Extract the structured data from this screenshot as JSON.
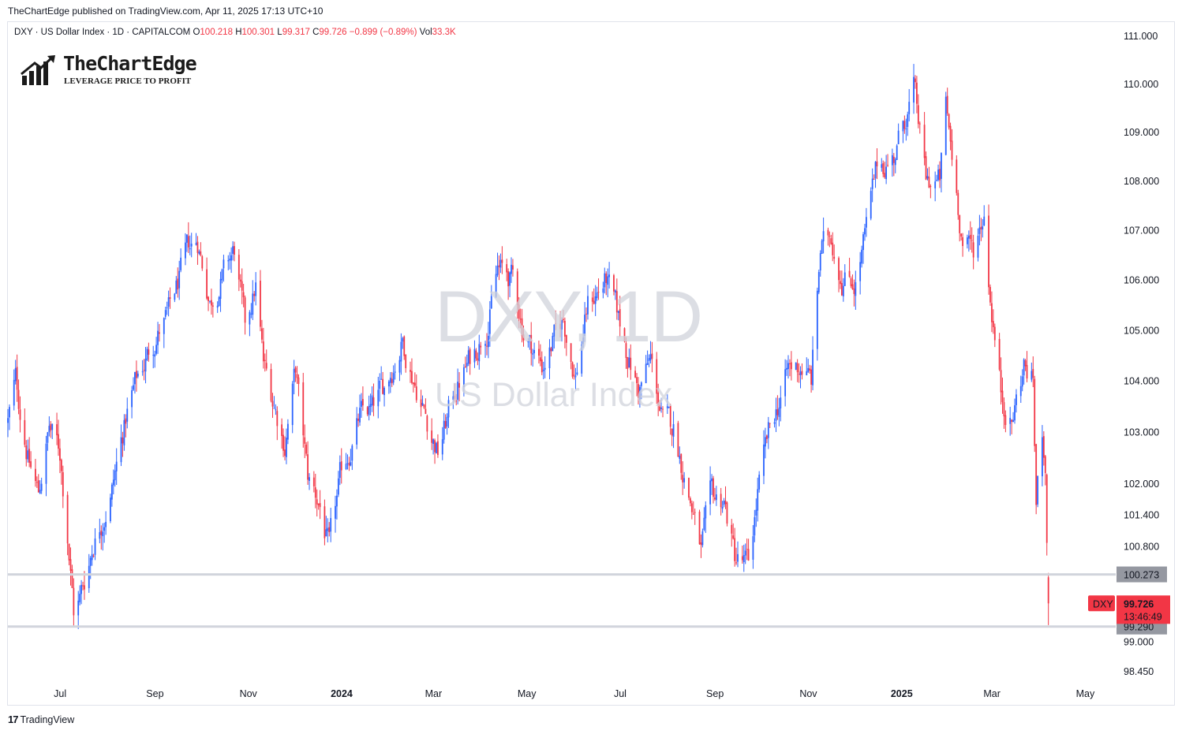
{
  "caption": "TheChartEdge published on TradingView.com, Apr 11, 2025 17:13 UTC+10",
  "legend": {
    "symbol_desc": "DXY · US Dollar Index · 1D · CAPITALCOM",
    "o_key": "O",
    "o_val": "100.218",
    "h_key": "H",
    "h_val": "100.301",
    "l_key": "L",
    "l_val": "99.317",
    "c_key": "C",
    "c_val": "99.726",
    "change": "−0.899 (−0.89%)",
    "vol_key": "Vol",
    "vol_val": "33.3K"
  },
  "logo": {
    "title": "TheChartEdge",
    "tagline": "LEVERAGE PRICE TO PROFIT",
    "icon": "bar-chart-arrow-icon"
  },
  "watermark": {
    "main": "DXY, 1D",
    "sub": "US Dollar Index"
  },
  "footer": {
    "brand": "TradingView",
    "icon": "tradingview-logo-icon"
  },
  "colors": {
    "up": "#2962ff",
    "down": "#f23645",
    "level_line": "#d1d4dc",
    "label_bg": "#9598a1",
    "price_tag": "#f23645"
  },
  "chart_data": {
    "type": "candlestick",
    "symbol": "DXY",
    "timeframe": "1D",
    "y_scale": "log",
    "y_ticks": [
      "111.000",
      "110.000",
      "109.000",
      "108.000",
      "107.000",
      "106.000",
      "105.000",
      "104.000",
      "103.000",
      "102.000",
      "101.400",
      "100.800",
      "99.000",
      "98.450"
    ],
    "x_ticks": [
      {
        "label": "Jul",
        "year": false
      },
      {
        "label": "Sep",
        "year": false
      },
      {
        "label": "Nov",
        "year": false
      },
      {
        "label": "2024",
        "year": true
      },
      {
        "label": "Mar",
        "year": false
      },
      {
        "label": "May",
        "year": false
      },
      {
        "label": "Jul",
        "year": false
      },
      {
        "label": "Sep",
        "year": false
      },
      {
        "label": "Nov",
        "year": false
      },
      {
        "label": "2025",
        "year": true
      },
      {
        "label": "Mar",
        "year": false
      },
      {
        "label": "May",
        "year": false
      }
    ],
    "horizontal_levels": [
      {
        "price": 100.273,
        "label": "100.273"
      },
      {
        "price": 99.29,
        "label": "99.290"
      }
    ],
    "last_price": {
      "symbol": "DXY",
      "price": 99.726,
      "label": "99.726",
      "countdown": "13:46:49"
    },
    "x_range": [
      "2023-06-01",
      "2025-05-25"
    ],
    "ylim": [
      98.3,
      111.3
    ],
    "price_path": [
      [
        "2023-06-01",
        103.2
      ],
      [
        "2023-06-06",
        104.0
      ],
      [
        "2023-06-15",
        102.4
      ],
      [
        "2023-06-21",
        101.8
      ],
      [
        "2023-06-28",
        103.1
      ],
      [
        "2023-07-05",
        102.6
      ],
      [
        "2023-07-10",
        101.1
      ],
      [
        "2023-07-14",
        99.6
      ],
      [
        "2023-07-18",
        99.8
      ],
      [
        "2023-07-27",
        100.9
      ],
      [
        "2023-08-08",
        101.9
      ],
      [
        "2023-08-18",
        103.4
      ],
      [
        "2023-08-25",
        104.1
      ],
      [
        "2023-09-06",
        104.9
      ],
      [
        "2023-09-14",
        105.3
      ],
      [
        "2023-09-27",
        106.6
      ],
      [
        "2023-10-03",
        106.8
      ],
      [
        "2023-10-11",
        105.6
      ],
      [
        "2023-10-20",
        106.1
      ],
      [
        "2023-10-27",
        106.6
      ],
      [
        "2023-11-03",
        105.0
      ],
      [
        "2023-11-10",
        105.9
      ],
      [
        "2023-11-15",
        104.3
      ],
      [
        "2023-11-29",
        102.8
      ],
      [
        "2023-12-06",
        104.2
      ],
      [
        "2023-12-14",
        102.1
      ],
      [
        "2023-12-22",
        101.6
      ],
      [
        "2023-12-28",
        100.7
      ],
      [
        "2024-01-05",
        102.2
      ],
      [
        "2024-01-17",
        103.3
      ],
      [
        "2024-01-25",
        103.4
      ],
      [
        "2024-02-02",
        103.9
      ],
      [
        "2024-02-14",
        104.8
      ],
      [
        "2024-02-22",
        104.0
      ],
      [
        "2024-03-08",
        102.6
      ],
      [
        "2024-03-19",
        103.8
      ],
      [
        "2024-04-01",
        104.6
      ],
      [
        "2024-04-10",
        105.2
      ],
      [
        "2024-04-16",
        106.2
      ],
      [
        "2024-04-26",
        106.0
      ],
      [
        "2024-05-03",
        105.0
      ],
      [
        "2024-05-15",
        104.3
      ],
      [
        "2024-05-29",
        105.2
      ],
      [
        "2024-06-06",
        104.1
      ],
      [
        "2024-06-14",
        105.5
      ],
      [
        "2024-06-26",
        106.0
      ],
      [
        "2024-07-03",
        105.3
      ],
      [
        "2024-07-17",
        103.8
      ],
      [
        "2024-07-25",
        104.4
      ],
      [
        "2024-08-02",
        103.2
      ],
      [
        "2024-08-09",
        103.1
      ],
      [
        "2024-08-20",
        101.7
      ],
      [
        "2024-08-27",
        100.7
      ],
      [
        "2024-09-03",
        101.7
      ],
      [
        "2024-09-11",
        101.7
      ],
      [
        "2024-09-18",
        100.6
      ],
      [
        "2024-09-27",
        100.4
      ],
      [
        "2024-10-03",
        101.8
      ],
      [
        "2024-10-10",
        102.9
      ],
      [
        "2024-10-23",
        104.2
      ],
      [
        "2024-11-01",
        104.3
      ],
      [
        "2024-11-07",
        104.0
      ],
      [
        "2024-11-13",
        106.6
      ],
      [
        "2024-11-20",
        106.9
      ],
      [
        "2024-11-27",
        106.1
      ],
      [
        "2024-12-06",
        106.0
      ],
      [
        "2024-12-13",
        107.0
      ],
      [
        "2024-12-20",
        108.3
      ],
      [
        "2024-12-31",
        108.5
      ],
      [
        "2025-01-13",
        109.9
      ],
      [
        "2025-01-21",
        108.0
      ],
      [
        "2025-01-30",
        108.0
      ],
      [
        "2025-02-03",
        109.5
      ],
      [
        "2025-02-14",
        106.8
      ],
      [
        "2025-02-21",
        106.6
      ],
      [
        "2025-02-28",
        107.4
      ],
      [
        "2025-03-04",
        105.7
      ],
      [
        "2025-03-11",
        103.8
      ],
      [
        "2025-03-18",
        103.2
      ],
      [
        "2025-03-26",
        104.3
      ],
      [
        "2025-04-01",
        104.0
      ],
      [
        "2025-04-03",
        101.6
      ],
      [
        "2025-04-07",
        103.0
      ],
      [
        "2025-04-09",
        102.5
      ],
      [
        "2025-04-10",
        100.8
      ],
      [
        "2025-04-11",
        99.7
      ]
    ]
  }
}
